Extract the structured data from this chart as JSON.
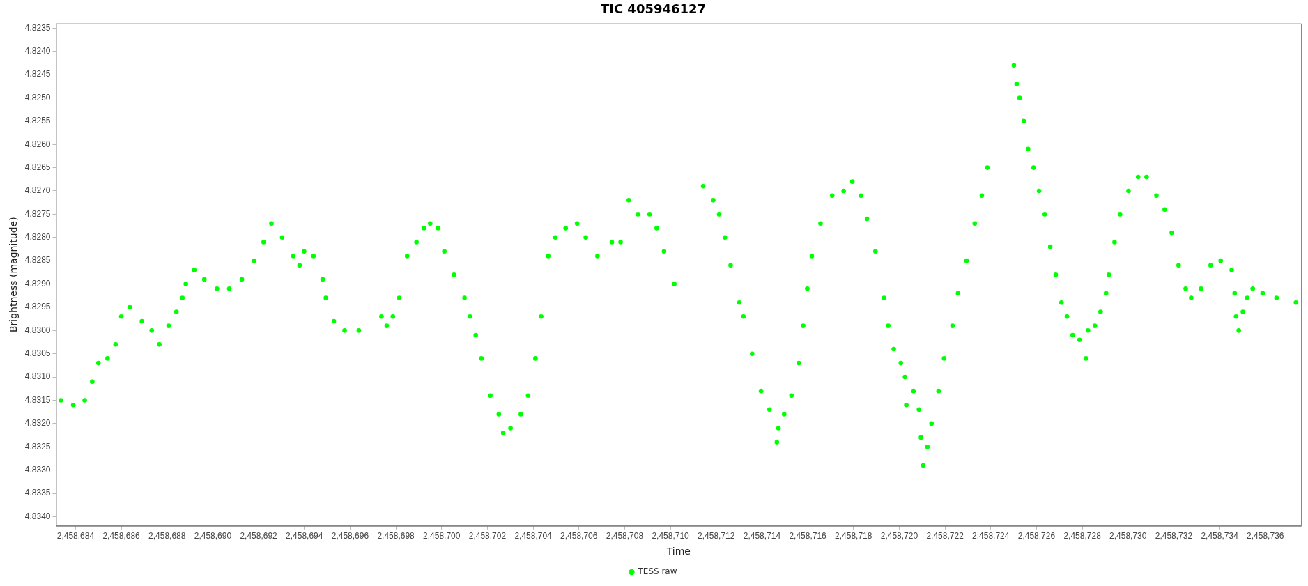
{
  "chart_data": {
    "type": "scatter",
    "title": "TIC 405946127",
    "xlabel": "Time",
    "ylabel": "Brightness (magnitude)",
    "xlim": [
      2458683.15,
      2458737.56
    ],
    "xticks": [
      {
        "value": 2458684,
        "label": "2,458,684"
      },
      {
        "value": 2458686,
        "label": "2,458,686"
      },
      {
        "value": 2458688,
        "label": "2,458,688"
      },
      {
        "value": 2458690,
        "label": "2,458,690"
      },
      {
        "value": 2458692,
        "label": "2,458,692"
      },
      {
        "value": 2458694,
        "label": "2,458,694"
      },
      {
        "value": 2458696,
        "label": "2,458,696"
      },
      {
        "value": 2458698,
        "label": "2,458,698"
      },
      {
        "value": 2458700,
        "label": "2,458,700"
      },
      {
        "value": 2458702,
        "label": "2,458,702"
      },
      {
        "value": 2458704,
        "label": "2,458,704"
      },
      {
        "value": 2458706,
        "label": "2,458,706"
      },
      {
        "value": 2458708,
        "label": "2,458,708"
      },
      {
        "value": 2458710,
        "label": "2,458,710"
      },
      {
        "value": 2458712,
        "label": "2,458,712"
      },
      {
        "value": 2458714,
        "label": "2,458,714"
      },
      {
        "value": 2458716,
        "label": "2,458,716"
      },
      {
        "value": 2458718,
        "label": "2,458,718"
      },
      {
        "value": 2458720,
        "label": "2,458,720"
      },
      {
        "value": 2458722,
        "label": "2,458,722"
      },
      {
        "value": 2458724,
        "label": "2,458,724"
      },
      {
        "value": 2458726,
        "label": "2,458,726"
      },
      {
        "value": 2458728,
        "label": "2,458,728"
      },
      {
        "value": 2458730,
        "label": "2,458,730"
      },
      {
        "value": 2458732,
        "label": "2,458,732"
      },
      {
        "value": 2458734,
        "label": "2,458,734"
      },
      {
        "value": 2458736,
        "label": "2,458,736"
      }
    ],
    "ylim": [
      4.8342,
      4.8234
    ],
    "yticks": [
      4.8235,
      {
        "value": 4.824,
        "label": "4.8240"
      },
      4.8245,
      {
        "value": 4.825,
        "label": "4.8250"
      },
      4.8255,
      {
        "value": 4.826,
        "label": "4.8260"
      },
      4.8265,
      {
        "value": 4.827,
        "label": "4.8270"
      },
      4.8275,
      {
        "value": 4.828,
        "label": "4.8280"
      },
      4.8285,
      {
        "value": 4.829,
        "label": "4.8290"
      },
      4.8295,
      {
        "value": 4.83,
        "label": "4.8300"
      },
      4.8305,
      {
        "value": 4.831,
        "label": "4.8310"
      },
      4.8315,
      {
        "value": 4.832,
        "label": "4.8320"
      },
      4.8325,
      {
        "value": 4.833,
        "label": "4.8330"
      },
      4.8335,
      {
        "value": 4.834,
        "label": "4.8340"
      }
    ],
    "grid": false,
    "legend": "bottom",
    "marker": "circle",
    "series": [
      {
        "name": "TESS raw",
        "color": "#00ff00",
        "x": [
          2458683.36,
          2458683.9,
          2458684.4,
          2458684.73,
          2458685.0,
          2458685.4,
          2458685.75,
          2458686.0,
          2458686.37,
          2458686.9,
          2458687.33,
          2458687.66,
          2458688.07,
          2458688.41,
          2458688.67,
          2458688.82,
          2458689.19,
          2458689.63,
          2458690.18,
          2458690.72,
          2458691.27,
          2458691.81,
          2458692.22,
          2458692.56,
          2458693.03,
          2458693.52,
          2458693.79,
          2458693.99,
          2458694.4,
          2458694.8,
          2458694.94,
          2458695.29,
          2458695.76,
          2458696.38,
          2458697.37,
          2458697.6,
          2458697.87,
          2458698.15,
          2458698.49,
          2458698.9,
          2458699.23,
          2458699.5,
          2458699.85,
          2458700.12,
          2458700.54,
          2458701.0,
          2458701.24,
          2458701.49,
          2458701.74,
          2458702.13,
          2458702.5,
          2458702.69,
          2458703.01,
          2458703.46,
          2458703.78,
          2458704.1,
          2458704.35,
          2458704.66,
          2458704.97,
          2458705.42,
          2458705.92,
          2458706.3,
          2458706.81,
          2458707.44,
          2458707.82,
          2458708.18,
          2458708.58,
          2458709.09,
          2458709.4,
          2458709.72,
          2458710.17,
          2458711.43,
          2458711.87,
          2458712.13,
          2458712.38,
          2458712.63,
          2458713.01,
          2458713.19,
          2458713.57,
          2458713.96,
          2458714.33,
          2458714.65,
          2458714.72,
          2458714.97,
          2458715.29,
          2458715.61,
          2458715.8,
          2458715.98,
          2458716.18,
          2458716.56,
          2458717.07,
          2458717.57,
          2458717.95,
          2458718.33,
          2458718.59,
          2458718.96,
          2458719.34,
          2458719.52,
          2458719.76,
          2458720.07,
          2458720.25,
          2458720.31,
          2458720.62,
          2458720.86,
          2458720.95,
          2458721.05,
          2458721.23,
          2458721.41,
          2458721.72,
          2458721.96,
          2458722.33,
          2458722.57,
          2458722.94,
          2458723.3,
          2458723.61,
          2458723.85,
          2458725.01,
          2458725.13,
          2458725.26,
          2458725.44,
          2458725.63,
          2458725.87,
          2458726.11,
          2458726.36,
          2458726.6,
          2458726.84,
          2458727.09,
          2458727.33,
          2458727.58,
          2458727.88,
          2458728.16,
          2458728.25,
          2458728.55,
          2458728.8,
          2458729.04,
          2458729.16,
          2458729.41,
          2458729.65,
          2458730.02,
          2458730.44,
          2458730.81,
          2458731.24,
          2458731.6,
          2458731.91,
          2458732.21,
          2458732.52,
          2458732.76,
          2458733.19,
          2458733.61,
          2458734.05,
          2458734.53,
          2458734.66,
          2458734.72,
          2458734.84,
          2458735.02,
          2458735.21,
          2458735.45,
          2458735.88,
          2458736.49,
          2458737.34
        ],
        "values": [
          4.8315,
          4.8316,
          4.8315,
          4.8311,
          4.8307,
          4.8306,
          4.8303,
          4.8297,
          4.8295,
          4.8298,
          4.83,
          4.8303,
          4.8299,
          4.8296,
          4.8293,
          4.829,
          4.8287,
          4.8289,
          4.8291,
          4.8291,
          4.8289,
          4.8285,
          4.8281,
          4.8277,
          4.828,
          4.8284,
          4.8286,
          4.8283,
          4.8284,
          4.8289,
          4.8293,
          4.8298,
          4.83,
          4.83,
          4.8297,
          4.8299,
          4.8297,
          4.8293,
          4.8284,
          4.8281,
          4.8278,
          4.8277,
          4.8278,
          4.8283,
          4.8288,
          4.8293,
          4.8297,
          4.8301,
          4.8306,
          4.8314,
          4.8318,
          4.8322,
          4.8321,
          4.8318,
          4.8314,
          4.8306,
          4.8297,
          4.8284,
          4.828,
          4.8278,
          4.8277,
          4.828,
          4.8284,
          4.8281,
          4.8281,
          4.8272,
          4.8275,
          4.8275,
          4.8278,
          4.8283,
          4.829,
          4.8269,
          4.8272,
          4.8275,
          4.828,
          4.8286,
          4.8294,
          4.8297,
          4.8305,
          4.8313,
          4.8317,
          4.8324,
          4.8321,
          4.8318,
          4.8314,
          4.8307,
          4.8299,
          4.8291,
          4.8284,
          4.8277,
          4.8271,
          4.827,
          4.8268,
          4.8271,
          4.8276,
          4.8283,
          4.8293,
          4.8299,
          4.8304,
          4.8307,
          4.831,
          4.8316,
          4.8313,
          4.8317,
          4.8323,
          4.8329,
          4.8325,
          4.832,
          4.8313,
          4.8306,
          4.8299,
          4.8292,
          4.8285,
          4.8277,
          4.8271,
          4.8265,
          4.8243,
          4.8247,
          4.825,
          4.8255,
          4.8261,
          4.8265,
          4.827,
          4.8275,
          4.8282,
          4.8288,
          4.8294,
          4.8297,
          4.8301,
          4.8302,
          4.8306,
          4.83,
          4.8299,
          4.8296,
          4.8292,
          4.8288,
          4.8281,
          4.8275,
          4.827,
          4.8267,
          4.8267,
          4.8271,
          4.8274,
          4.8279,
          4.8286,
          4.8291,
          4.8293,
          4.8291,
          4.8286,
          4.8285,
          4.8287,
          4.8292,
          4.8297,
          4.83,
          4.8296,
          4.8293,
          4.8291,
          4.8292,
          4.8293,
          4.8294
        ]
      }
    ]
  }
}
